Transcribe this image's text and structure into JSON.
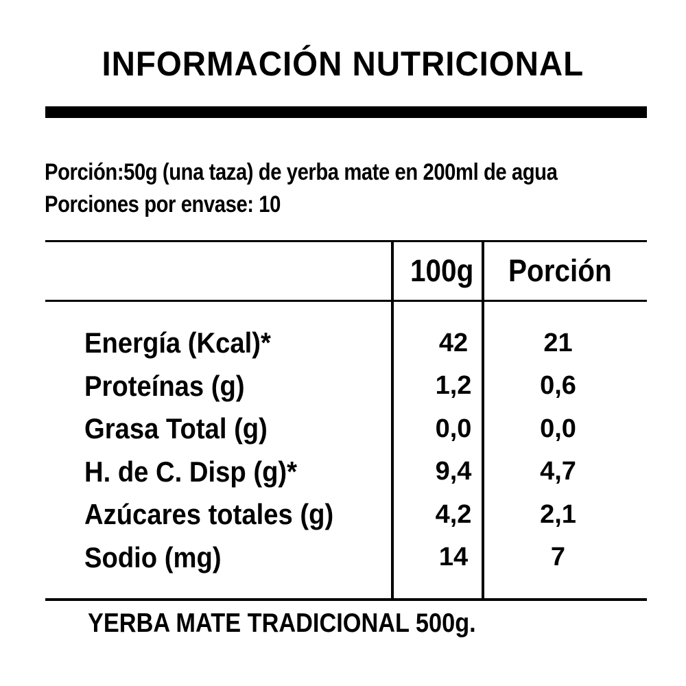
{
  "title": "INFORMACIÓN NUTRICIONAL",
  "serving": {
    "line1": "Porción:50g (una taza) de yerba mate en 200ml de agua",
    "line2": "Porciones por envase: 10"
  },
  "table": {
    "columns": [
      "100g",
      "Porción"
    ],
    "rows": [
      {
        "label": "Energía (Kcal)*",
        "per100g": "42",
        "portion": "21"
      },
      {
        "label": "Proteínas (g)",
        "per100g": "1,2",
        "portion": "0,6"
      },
      {
        "label": "Grasa Total (g)",
        "per100g": "0,0",
        "portion": "0,0"
      },
      {
        "label": "H. de C. Disp (g)*",
        "per100g": "9,4",
        "portion": "4,7"
      },
      {
        "label": "Azúcares totales (g)",
        "per100g": "4,2",
        "portion": "2,1"
      },
      {
        "label": "Sodio (mg)",
        "per100g": "14",
        "portion": "7"
      }
    ]
  },
  "footer": {
    "product": "YERBA MATE TRADICIONAL 500g."
  },
  "colors": {
    "text": "#000000",
    "background": "#ffffff",
    "rule": "#000000"
  }
}
